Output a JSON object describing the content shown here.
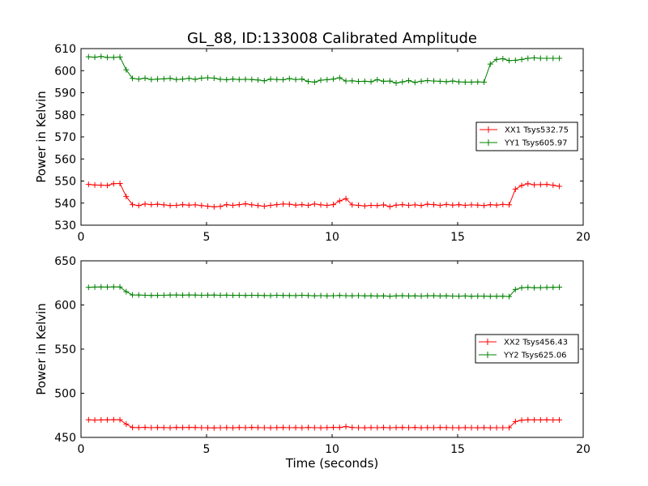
{
  "title": "GL_88, ID:133008 Calibrated Amplitude",
  "chart_data": [
    {
      "type": "line",
      "title": "GL_88, ID:133008 Calibrated Amplitude",
      "xlabel": "",
      "ylabel": "Power in Kelvin",
      "xlim": [
        0,
        20
      ],
      "ylim": [
        530,
        610
      ],
      "xticks": [
        0,
        5,
        10,
        15,
        20
      ],
      "yticks": [
        530,
        540,
        550,
        560,
        570,
        580,
        590,
        600,
        610
      ],
      "grid": false,
      "legend_position": "center-right",
      "x": [
        0.3,
        0.55,
        0.8,
        1.05,
        1.3,
        1.55,
        1.8,
        2.05,
        2.3,
        2.55,
        2.8,
        3.05,
        3.3,
        3.55,
        3.8,
        4.05,
        4.3,
        4.55,
        4.8,
        5.05,
        5.3,
        5.55,
        5.8,
        6.05,
        6.3,
        6.55,
        6.8,
        7.05,
        7.3,
        7.55,
        7.8,
        8.05,
        8.3,
        8.55,
        8.8,
        9.05,
        9.3,
        9.55,
        9.8,
        10.05,
        10.3,
        10.55,
        10.8,
        11.05,
        11.3,
        11.55,
        11.8,
        12.05,
        12.3,
        12.55,
        12.8,
        13.05,
        13.3,
        13.55,
        13.8,
        14.05,
        14.3,
        14.55,
        14.8,
        15.05,
        15.3,
        15.55,
        15.8,
        16.05,
        16.3,
        16.55,
        16.8,
        17.05,
        17.3,
        17.55,
        17.8,
        18.05,
        18.3,
        18.55,
        18.8,
        19.05
      ],
      "series": [
        {
          "name": "XX1 Tsys532.75",
          "color": "#ff0000",
          "values": [
            548.5,
            548.2,
            548.1,
            548.0,
            548.8,
            548.9,
            543.0,
            539.3,
            538.9,
            539.6,
            539.3,
            539.5,
            539.2,
            538.9,
            539.0,
            539.3,
            539.1,
            539.2,
            538.9,
            538.6,
            538.3,
            538.5,
            539.3,
            539.0,
            539.3,
            539.7,
            539.2,
            538.9,
            538.6,
            539.0,
            539.3,
            539.6,
            539.5,
            539.1,
            539.3,
            539.0,
            539.6,
            539.2,
            539.0,
            539.3,
            541.0,
            542.0,
            539.2,
            539.0,
            538.7,
            539.0,
            538.9,
            539.2,
            538.4,
            539.1,
            539.3,
            539.0,
            539.2,
            538.9,
            539.5,
            539.3,
            539.0,
            539.4,
            539.1,
            539.3,
            539.0,
            539.2,
            539.1,
            538.9,
            539.3,
            539.1,
            539.4,
            539.2,
            546.3,
            548.0,
            548.8,
            548.3,
            548.4,
            548.5,
            548.1,
            547.6
          ]
        },
        {
          "name": "YY1 Tsys605.97",
          "color": "#008000",
          "values": [
            606.3,
            606.1,
            606.4,
            606.0,
            606.0,
            606.2,
            600.4,
            596.5,
            596.2,
            596.6,
            596.0,
            596.2,
            596.3,
            596.5,
            596.0,
            596.2,
            596.5,
            596.1,
            596.6,
            596.8,
            596.6,
            596.1,
            595.9,
            596.2,
            596.0,
            596.1,
            596.0,
            595.8,
            595.4,
            596.2,
            596.0,
            595.9,
            596.4,
            596.0,
            596.2,
            595.1,
            594.8,
            595.7,
            595.9,
            596.2,
            596.8,
            595.3,
            595.4,
            595.1,
            595.2,
            595.0,
            595.9,
            595.2,
            595.3,
            594.4,
            594.9,
            595.5,
            594.7,
            595.2,
            595.5,
            595.3,
            595.2,
            595.0,
            595.3,
            594.9,
            594.8,
            594.8,
            594.9,
            594.8,
            603.0,
            605.1,
            605.4,
            604.6,
            604.7,
            605.1,
            605.6,
            605.8,
            605.6,
            605.6,
            605.6,
            605.6
          ]
        }
      ]
    },
    {
      "type": "line",
      "title": "",
      "xlabel": "Time (seconds)",
      "ylabel": "Power in Kelvin",
      "xlim": [
        0,
        20
      ],
      "ylim": [
        450,
        650
      ],
      "xticks": [
        0,
        5,
        10,
        15,
        20
      ],
      "yticks": [
        450,
        500,
        550,
        600,
        650
      ],
      "grid": false,
      "legend_position": "center-right",
      "x": [
        0.3,
        0.55,
        0.8,
        1.05,
        1.3,
        1.55,
        1.8,
        2.05,
        2.3,
        2.55,
        2.8,
        3.05,
        3.3,
        3.55,
        3.8,
        4.05,
        4.3,
        4.55,
        4.8,
        5.05,
        5.3,
        5.55,
        5.8,
        6.05,
        6.3,
        6.55,
        6.8,
        7.05,
        7.3,
        7.55,
        7.8,
        8.05,
        8.3,
        8.55,
        8.8,
        9.05,
        9.3,
        9.55,
        9.8,
        10.05,
        10.3,
        10.55,
        10.8,
        11.05,
        11.3,
        11.55,
        11.8,
        12.05,
        12.3,
        12.55,
        12.8,
        13.05,
        13.3,
        13.55,
        13.8,
        14.05,
        14.3,
        14.55,
        14.8,
        15.05,
        15.3,
        15.55,
        15.8,
        16.05,
        16.3,
        16.55,
        16.8,
        17.05,
        17.3,
        17.55,
        17.8,
        18.05,
        18.3,
        18.55,
        18.8,
        19.05
      ],
      "series": [
        {
          "name": "XX2 Tsys456.43",
          "color": "#ff0000",
          "values": [
            470.0,
            469.6,
            469.8,
            470.0,
            470.1,
            470.0,
            465.0,
            461.2,
            461.1,
            461.4,
            461.0,
            461.2,
            461.1,
            460.9,
            461.3,
            461.1,
            461.4,
            461.2,
            461.0,
            460.9,
            460.8,
            461.0,
            461.1,
            460.9,
            461.2,
            461.0,
            461.3,
            461.1,
            461.0,
            460.9,
            461.1,
            461.2,
            461.0,
            461.1,
            460.9,
            461.2,
            461.0,
            460.9,
            461.1,
            461.3,
            461.2,
            462.3,
            461.2,
            461.0,
            460.9,
            461.1,
            461.0,
            461.2,
            460.9,
            461.1,
            461.2,
            461.0,
            461.2,
            460.9,
            461.1,
            461.0,
            461.2,
            461.1,
            461.0,
            460.9,
            461.1,
            461.0,
            460.9,
            461.1,
            460.9,
            461.0,
            461.0,
            461.0,
            468.0,
            469.5,
            470.0,
            469.8,
            469.8,
            469.9,
            469.7,
            469.8
          ]
        },
        {
          "name": "YY2 Tsys625.06",
          "color": "#008000",
          "values": [
            620.0,
            620.3,
            620.4,
            620.3,
            620.5,
            620.4,
            615.0,
            611.4,
            611.3,
            611.0,
            610.8,
            610.9,
            611.0,
            611.2,
            611.3,
            611.1,
            611.3,
            611.2,
            611.0,
            611.1,
            611.2,
            611.0,
            611.1,
            610.9,
            611.0,
            610.8,
            611.0,
            610.9,
            610.7,
            610.6,
            611.0,
            610.8,
            610.7,
            610.6,
            611.0,
            610.7,
            610.4,
            610.6,
            610.3,
            610.5,
            610.8,
            610.5,
            610.4,
            610.6,
            610.3,
            610.4,
            610.2,
            610.3,
            609.9,
            610.3,
            610.5,
            610.2,
            610.3,
            610.1,
            610.4,
            610.5,
            610.2,
            610.3,
            610.1,
            610.0,
            610.2,
            609.8,
            610.1,
            610.0,
            609.8,
            609.9,
            610.0,
            609.5,
            617.5,
            619.5,
            620.0,
            619.5,
            619.6,
            619.8,
            620.0,
            620.2
          ]
        }
      ]
    }
  ]
}
